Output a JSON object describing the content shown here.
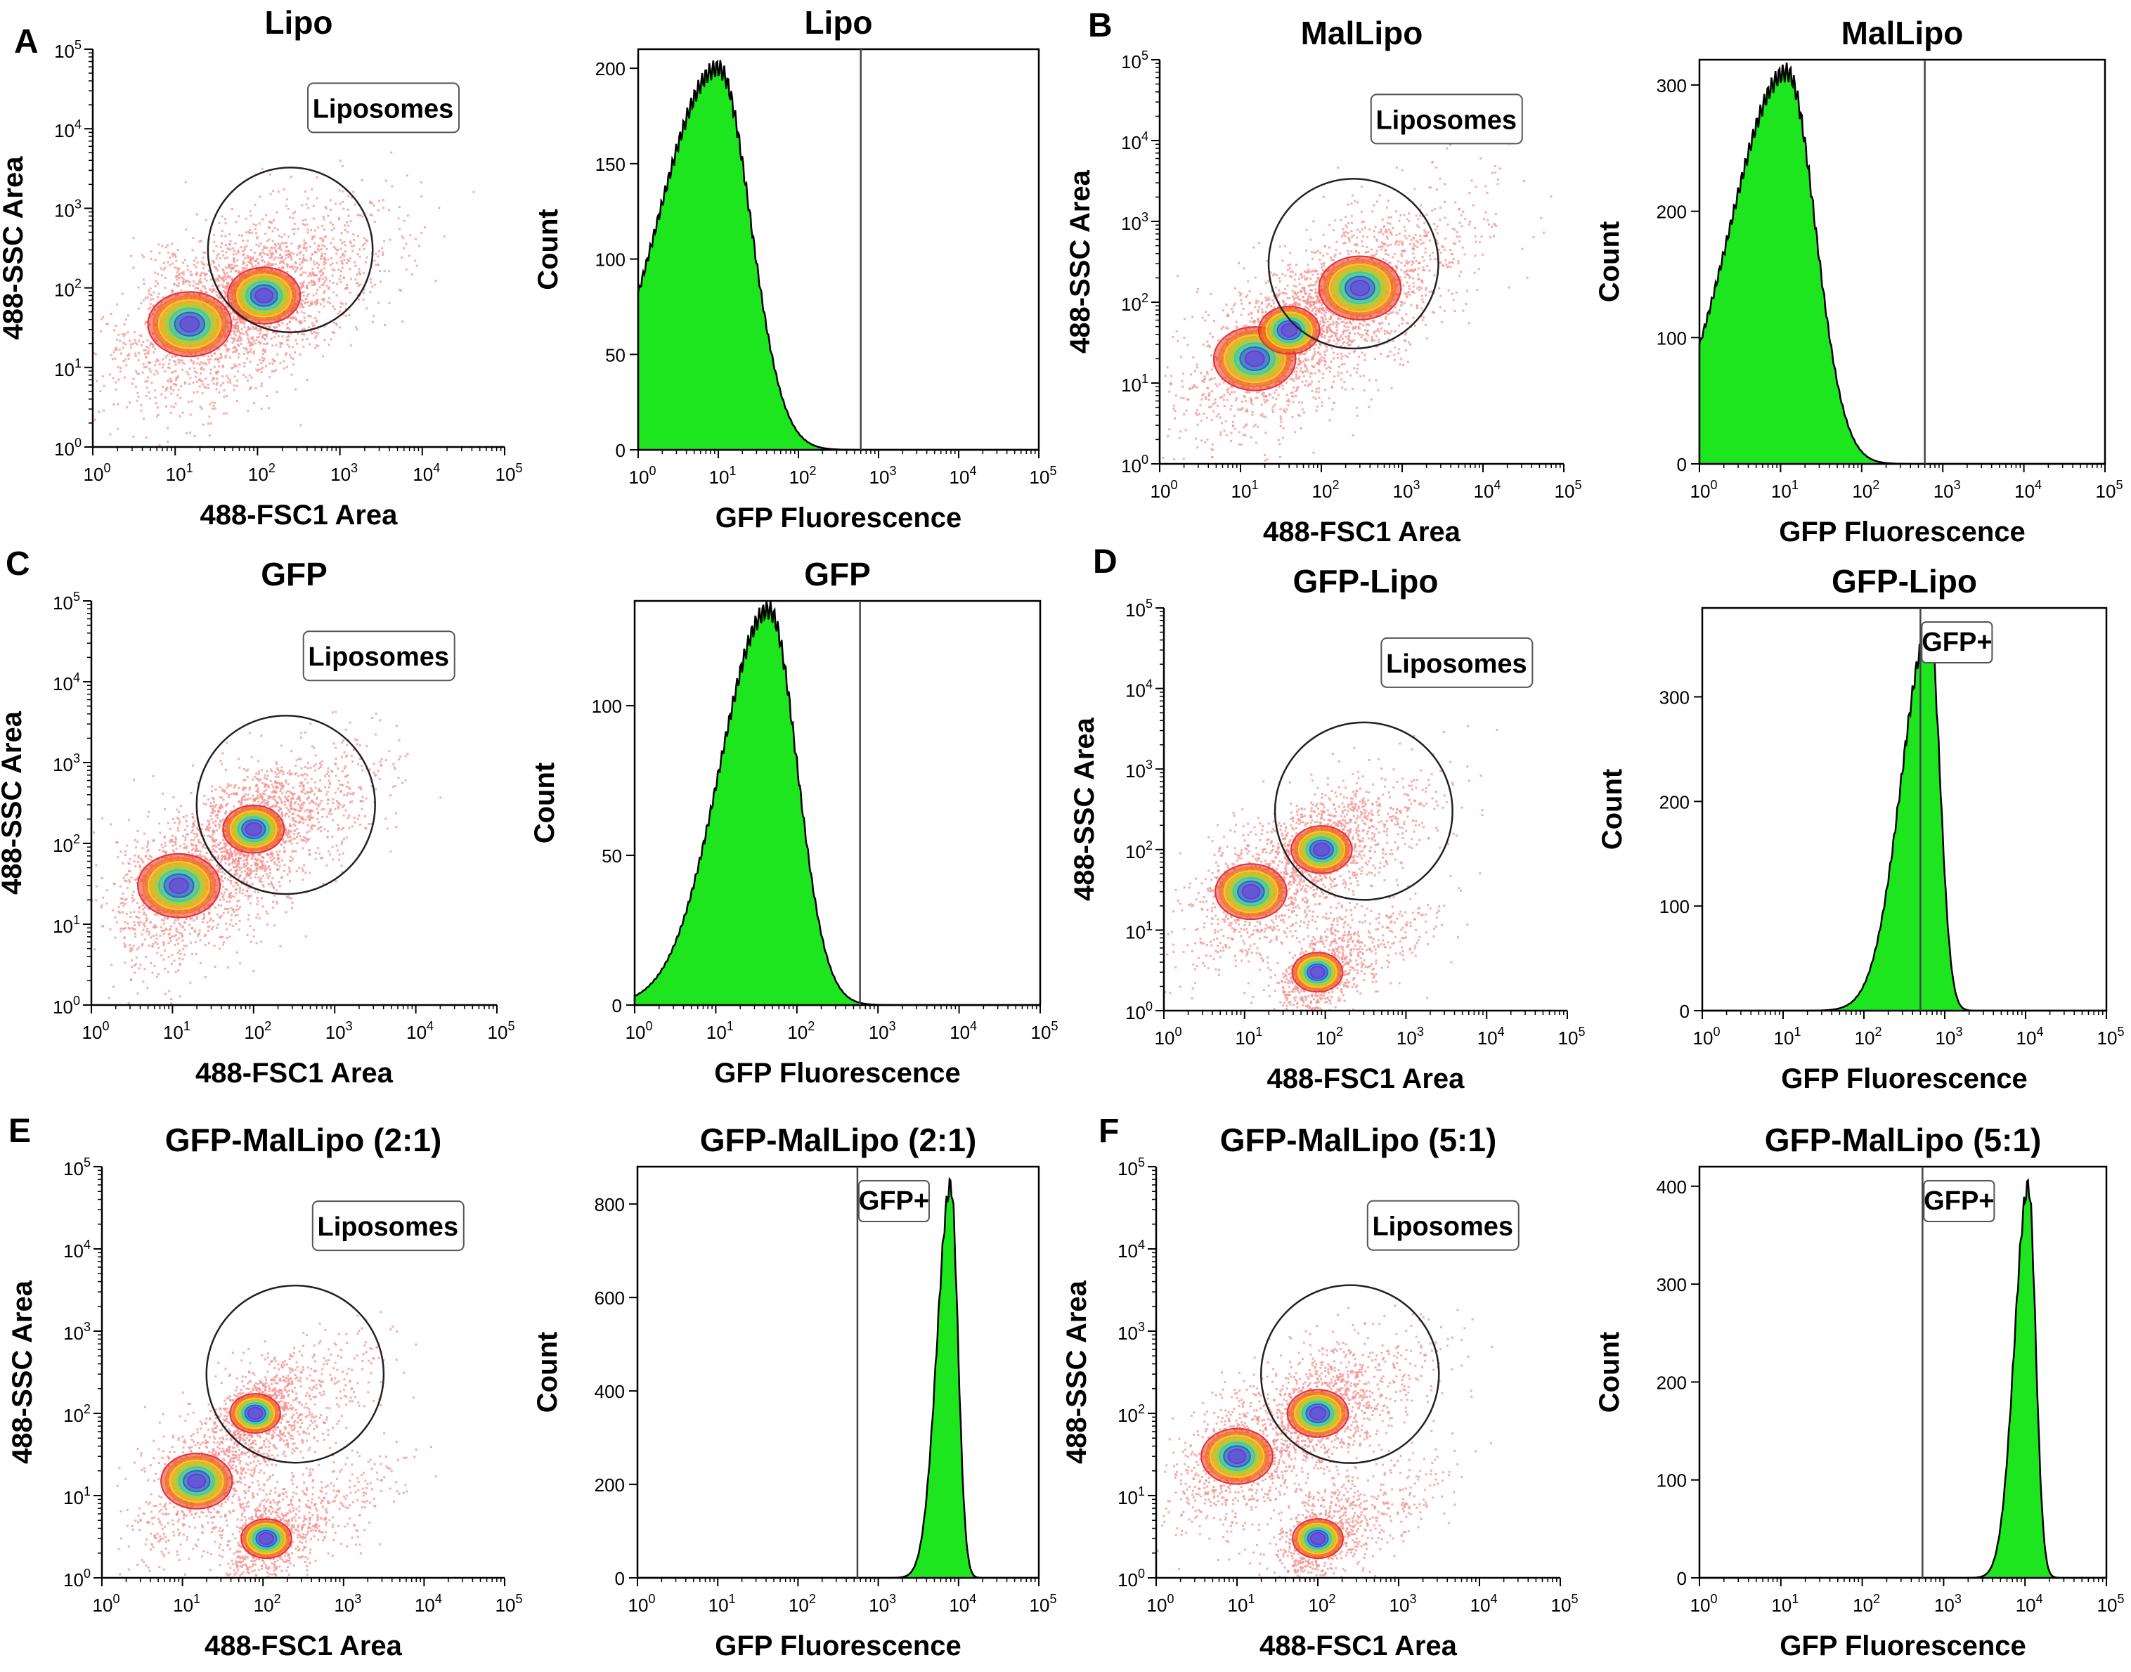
{
  "chart_data": [
    {
      "panel": "A",
      "type": "scatter",
      "title": "Lipo",
      "xlabel": "488-FSC1 Area",
      "ylabel": "488-SSC Area",
      "xscale": "log",
      "yscale": "log",
      "xlim": [
        1,
        100000
      ],
      "ylim": [
        1,
        100000
      ],
      "gate": {
        "label": "Liposomes",
        "shape": "circle",
        "center": [
          250,
          300
        ],
        "radius_decades": 1.0
      },
      "populations": [
        {
          "center": [
            15,
            35
          ],
          "spread": 0.35
        },
        {
          "center": [
            120,
            80
          ],
          "spread": 0.3
        }
      ]
    },
    {
      "panel": "A",
      "type": "area",
      "title": "Lipo",
      "xlabel": "GFP Fluorescence",
      "ylabel": "Count",
      "xscale": "log",
      "xlim": [
        1,
        100000
      ],
      "ylim": [
        0,
        210
      ],
      "yticks": [
        0,
        50,
        100,
        150,
        200
      ],
      "threshold": 600,
      "peak": {
        "x": 10,
        "y": 200,
        "left_width": 0.75,
        "right_width": 0.4
      }
    },
    {
      "panel": "B",
      "type": "scatter",
      "title": "MalLipo",
      "xlabel": "488-FSC1 Area",
      "ylabel": "488-SSC Area",
      "xscale": "log",
      "yscale": "log",
      "xlim": [
        1,
        100000
      ],
      "ylim": [
        1,
        100000
      ],
      "gate": {
        "label": "Liposomes",
        "shape": "circle",
        "center": [
          250,
          300
        ],
        "radius_decades": 1.05
      },
      "populations": [
        {
          "center": [
            15,
            20
          ],
          "spread": 0.35
        },
        {
          "center": [
            40,
            45
          ],
          "spread": 0.25
        },
        {
          "center": [
            300,
            150
          ],
          "spread": 0.35
        }
      ]
    },
    {
      "panel": "B",
      "type": "area",
      "title": "MalLipo",
      "xlabel": "GFP Fluorescence",
      "ylabel": "Count",
      "xscale": "log",
      "xlim": [
        1,
        100000
      ],
      "ylim": [
        0,
        320
      ],
      "yticks": [
        0,
        100,
        200,
        300
      ],
      "threshold": 600,
      "peak": {
        "x": 12,
        "y": 310,
        "left_width": 0.7,
        "right_width": 0.35
      }
    },
    {
      "panel": "C",
      "type": "scatter",
      "title": "GFP",
      "xlabel": "488-FSC1 Area",
      "ylabel": "488-SSC Area",
      "xscale": "log",
      "yscale": "log",
      "xlim": [
        1,
        100000
      ],
      "ylim": [
        1,
        100000
      ],
      "gate": {
        "label": "Liposomes",
        "shape": "circle",
        "center": [
          250,
          300
        ],
        "radius_decades": 1.1
      },
      "populations": [
        {
          "center": [
            12,
            30
          ],
          "spread": 0.35
        },
        {
          "center": [
            100,
            150
          ],
          "spread": 0.25
        }
      ]
    },
    {
      "panel": "C",
      "type": "area",
      "title": "GFP",
      "xlabel": "GFP Fluorescence",
      "ylabel": "Count",
      "xscale": "log",
      "xlim": [
        1,
        100000
      ],
      "ylim": [
        0,
        135
      ],
      "yticks": [
        0,
        50,
        100
      ],
      "threshold": 600,
      "peak": {
        "x": 45,
        "y": 132,
        "left_width": 0.6,
        "right_width": 0.35
      }
    },
    {
      "panel": "D",
      "type": "scatter",
      "title": "GFP-Lipo",
      "xlabel": "488-FSC1 Area",
      "ylabel": "488-SSC Area",
      "xscale": "log",
      "yscale": "log",
      "xlim": [
        1,
        100000
      ],
      "ylim": [
        1,
        100000
      ],
      "gate": {
        "label": "Liposomes",
        "shape": "circle",
        "center": [
          300,
          300
        ],
        "radius_decades": 1.1
      },
      "populations": [
        {
          "center": [
            12,
            30
          ],
          "spread": 0.3
        },
        {
          "center": [
            90,
            100
          ],
          "spread": 0.25
        },
        {
          "center": [
            80,
            3
          ],
          "spread": 0.2
        }
      ]
    },
    {
      "panel": "D",
      "type": "area",
      "title": "GFP-Lipo",
      "xlabel": "GFP Fluorescence",
      "ylabel": "Count",
      "xscale": "log",
      "xlim": [
        1,
        100000
      ],
      "ylim": [
        0,
        385
      ],
      "yticks": [
        0,
        100,
        200,
        300
      ],
      "threshold": 500,
      "gate_label": "GFP+",
      "peak": {
        "x": 650,
        "y": 365,
        "left_width": 0.35,
        "right_width": 0.13
      }
    },
    {
      "panel": "E",
      "type": "scatter",
      "title": "GFP-MalLipo (2:1)",
      "xlabel": "488-FSC1 Area",
      "ylabel": "488-SSC Area",
      "xscale": "log",
      "yscale": "log",
      "xlim": [
        1,
        100000
      ],
      "ylim": [
        1,
        100000
      ],
      "gate": {
        "label": "Liposomes",
        "shape": "circle",
        "center": [
          250,
          300
        ],
        "radius_decades": 1.1
      },
      "populations": [
        {
          "center": [
            15,
            15
          ],
          "spread": 0.3
        },
        {
          "center": [
            80,
            100
          ],
          "spread": 0.2
        },
        {
          "center": [
            110,
            3
          ],
          "spread": 0.2
        }
      ]
    },
    {
      "panel": "E",
      "type": "area",
      "title": "GFP-MalLipo (2:1)",
      "xlabel": "GFP Fluorescence",
      "ylabel": "Count",
      "xscale": "log",
      "xlim": [
        1,
        100000
      ],
      "ylim": [
        0,
        880
      ],
      "yticks": [
        0,
        200,
        400,
        600,
        800
      ],
      "threshold": 550,
      "gate_label": "GFP+",
      "peak": {
        "x": 8000,
        "y": 840,
        "left_width": 0.17,
        "right_width": 0.09
      }
    },
    {
      "panel": "F",
      "type": "scatter",
      "title": "GFP-MalLipo (5:1)",
      "xlabel": "488-FSC1 Area",
      "ylabel": "488-SSC Area",
      "xscale": "log",
      "yscale": "log",
      "xlim": [
        1,
        100000
      ],
      "ylim": [
        1,
        100000
      ],
      "gate": {
        "label": "Liposomes",
        "shape": "circle",
        "center": [
          250,
          300
        ],
        "radius_decades": 1.1
      },
      "populations": [
        {
          "center": [
            10,
            30
          ],
          "spread": 0.3
        },
        {
          "center": [
            100,
            100
          ],
          "spread": 0.25
        },
        {
          "center": [
            100,
            3
          ],
          "spread": 0.2
        }
      ]
    },
    {
      "panel": "F",
      "type": "area",
      "title": "GFP-MalLipo (5:1)",
      "xlabel": "GFP Fluorescence",
      "ylabel": "Count",
      "xscale": "log",
      "xlim": [
        1,
        100000
      ],
      "ylim": [
        0,
        420
      ],
      "yticks": [
        0,
        100,
        200,
        300,
        400
      ],
      "threshold": 550,
      "gate_label": "GFP+",
      "peak": {
        "x": 11000,
        "y": 400,
        "left_width": 0.17,
        "right_width": 0.09
      }
    }
  ],
  "tick_base": "10",
  "log_exponents": [
    "0",
    "1",
    "2",
    "3",
    "4",
    "5"
  ],
  "colors": {
    "scatter": "#f39090",
    "fill": "#1ee61e",
    "line": "#000000",
    "contours": [
      "#e83030",
      "#f27a1d",
      "#f5cf1d",
      "#9bd936",
      "#1bd1c8",
      "#2a5de8",
      "#7a2ee8"
    ]
  }
}
